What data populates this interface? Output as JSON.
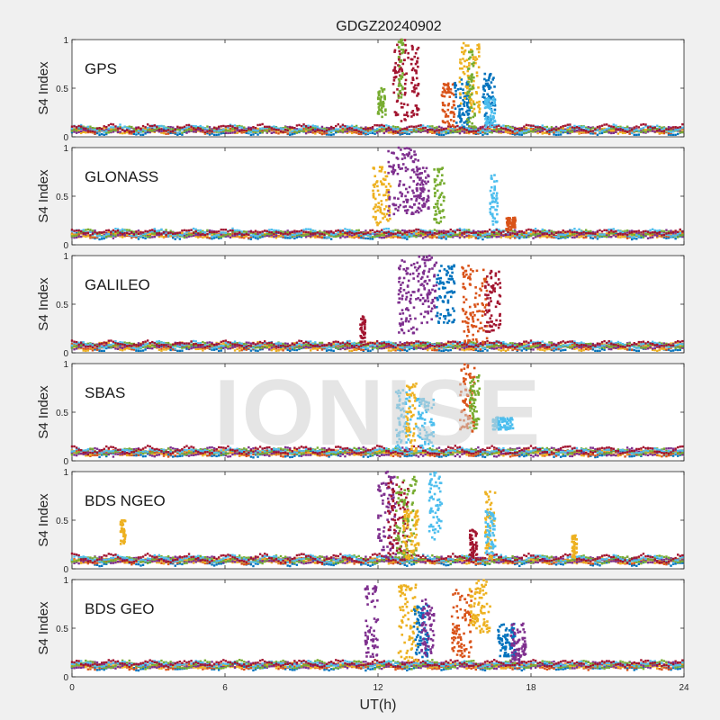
{
  "chart_data": {
    "type": "scatter",
    "title": "GDGZ20240902",
    "xlabel": "UT(h)",
    "ylabel": "S4 Index",
    "xlim": [
      0,
      24
    ],
    "ylim": [
      0,
      1
    ],
    "xticks": [
      "0",
      "6",
      "12",
      "18",
      "24"
    ],
    "yticks": [
      "0",
      "0.5",
      "1"
    ],
    "watermark": "IONISE",
    "series_colors": [
      "#0072BD",
      "#D95319",
      "#EDB120",
      "#7E2F8E",
      "#77AC30",
      "#4DBEEE",
      "#A2142F"
    ],
    "panels": [
      {
        "name": "GPS",
        "baseline": 0.07,
        "bursts": [
          {
            "t": [
              12.0,
              12.3
            ],
            "s4": [
              0.2,
              0.5
            ],
            "c": 4
          },
          {
            "t": [
              12.6,
              13.2
            ],
            "s4": [
              0.15,
              1.0
            ],
            "c": 6
          },
          {
            "t": [
              12.8,
              13.0
            ],
            "s4": [
              0.4,
              1.0
            ],
            "c": 4
          },
          {
            "t": [
              13.3,
              13.6
            ],
            "s4": [
              0.2,
              0.95
            ],
            "c": 6
          },
          {
            "t": [
              14.5,
              15.0
            ],
            "s4": [
              0.1,
              0.55
            ],
            "c": 1
          },
          {
            "t": [
              15.0,
              15.6
            ],
            "s4": [
              0.1,
              0.6
            ],
            "c": 0
          },
          {
            "t": [
              15.2,
              16.0
            ],
            "s4": [
              0.25,
              0.97
            ],
            "c": 2
          },
          {
            "t": [
              15.5,
              15.8
            ],
            "s4": [
              0.1,
              0.9
            ],
            "c": 4
          },
          {
            "t": [
              16.1,
              16.6
            ],
            "s4": [
              0.15,
              0.65
            ],
            "c": 0
          },
          {
            "t": [
              16.2,
              16.6
            ],
            "s4": [
              0.1,
              0.4
            ],
            "c": 5
          }
        ]
      },
      {
        "name": "GLONASS",
        "baseline": 0.11,
        "bursts": [
          {
            "t": [
              11.8,
              12.5
            ],
            "s4": [
              0.2,
              0.8
            ],
            "c": 2
          },
          {
            "t": [
              12.4,
              13.6
            ],
            "s4": [
              0.3,
              1.0
            ],
            "c": 3
          },
          {
            "t": [
              13.5,
              14.0
            ],
            "s4": [
              0.35,
              0.8
            ],
            "c": 3
          },
          {
            "t": [
              14.2,
              14.6
            ],
            "s4": [
              0.2,
              0.8
            ],
            "c": 4
          },
          {
            "t": [
              16.4,
              16.7
            ],
            "s4": [
              0.2,
              0.72
            ],
            "c": 5
          },
          {
            "t": [
              17.0,
              17.4
            ],
            "s4": [
              0.15,
              0.28
            ],
            "c": 1
          }
        ]
      },
      {
        "name": "GALILEO",
        "baseline": 0.07,
        "bursts": [
          {
            "t": [
              11.3,
              11.5
            ],
            "s4": [
              0.1,
              0.38
            ],
            "c": 6
          },
          {
            "t": [
              12.8,
              13.6
            ],
            "s4": [
              0.2,
              0.95
            ],
            "c": 3
          },
          {
            "t": [
              13.6,
              14.3
            ],
            "s4": [
              0.3,
              1.0
            ],
            "c": 3
          },
          {
            "t": [
              14.3,
              15.0
            ],
            "s4": [
              0.3,
              0.9
            ],
            "c": 0
          },
          {
            "t": [
              15.3,
              16.3
            ],
            "s4": [
              0.1,
              0.9
            ],
            "c": 1
          },
          {
            "t": [
              16.2,
              16.8
            ],
            "s4": [
              0.2,
              0.85
            ],
            "c": 6
          }
        ]
      },
      {
        "name": "SBAS",
        "baseline": 0.09,
        "bursts": [
          {
            "t": [
              12.7,
              13.3
            ],
            "s4": [
              0.1,
              0.75
            ],
            "c": 5
          },
          {
            "t": [
              13.1,
              13.5
            ],
            "s4": [
              0.1,
              0.8
            ],
            "c": 2
          },
          {
            "t": [
              13.5,
              14.2
            ],
            "s4": [
              0.15,
              0.65
            ],
            "c": 5
          },
          {
            "t": [
              15.2,
              15.8
            ],
            "s4": [
              0.3,
              1.0
            ],
            "c": 1
          },
          {
            "t": [
              15.6,
              16.0
            ],
            "s4": [
              0.3,
              0.9
            ],
            "c": 4
          },
          {
            "t": [
              16.5,
              17.3
            ],
            "s4": [
              0.32,
              0.45
            ],
            "c": 5
          }
        ]
      },
      {
        "name": "BDS NGEO",
        "baseline": 0.09,
        "bursts": [
          {
            "t": [
              1.9,
              2.1
            ],
            "s4": [
              0.25,
              0.5
            ],
            "c": 2
          },
          {
            "t": [
              12.0,
              12.7
            ],
            "s4": [
              0.1,
              1.0
            ],
            "c": 3
          },
          {
            "t": [
              12.4,
              13.2
            ],
            "s4": [
              0.1,
              0.9
            ],
            "c": 6
          },
          {
            "t": [
              12.7,
              13.5
            ],
            "s4": [
              0.1,
              0.95
            ],
            "c": 4
          },
          {
            "t": [
              13.0,
              13.6
            ],
            "s4": [
              0.1,
              0.6
            ],
            "c": 2
          },
          {
            "t": [
              14.0,
              14.5
            ],
            "s4": [
              0.3,
              1.0
            ],
            "c": 5
          },
          {
            "t": [
              15.6,
              15.9
            ],
            "s4": [
              0.1,
              0.4
            ],
            "c": 6
          },
          {
            "t": [
              16.2,
              16.6
            ],
            "s4": [
              0.1,
              0.8
            ],
            "c": 2
          },
          {
            "t": [
              16.2,
              16.6
            ],
            "s4": [
              0.15,
              0.6
            ],
            "c": 5
          },
          {
            "t": [
              19.6,
              19.8
            ],
            "s4": [
              0.1,
              0.35
            ],
            "c": 2
          }
        ]
      },
      {
        "name": "BDS GEO",
        "baseline": 0.12,
        "bursts": [
          {
            "t": [
              11.5,
              12.0
            ],
            "s4": [
              0.2,
              0.95
            ],
            "c": 3
          },
          {
            "t": [
              12.8,
              13.6
            ],
            "s4": [
              0.15,
              0.95
            ],
            "c": 2
          },
          {
            "t": [
              13.4,
              14.0
            ],
            "s4": [
              0.2,
              0.75
            ],
            "c": 0
          },
          {
            "t": [
              13.7,
              14.2
            ],
            "s4": [
              0.2,
              0.8
            ],
            "c": 3
          },
          {
            "t": [
              14.9,
              15.7
            ],
            "s4": [
              0.2,
              0.9
            ],
            "c": 1
          },
          {
            "t": [
              15.6,
              16.4
            ],
            "s4": [
              0.45,
              1.0
            ],
            "c": 2
          },
          {
            "t": [
              16.7,
              17.4
            ],
            "s4": [
              0.2,
              0.55
            ],
            "c": 0
          },
          {
            "t": [
              17.2,
              17.8
            ],
            "s4": [
              0.15,
              0.55
            ],
            "c": 3
          }
        ]
      }
    ]
  }
}
